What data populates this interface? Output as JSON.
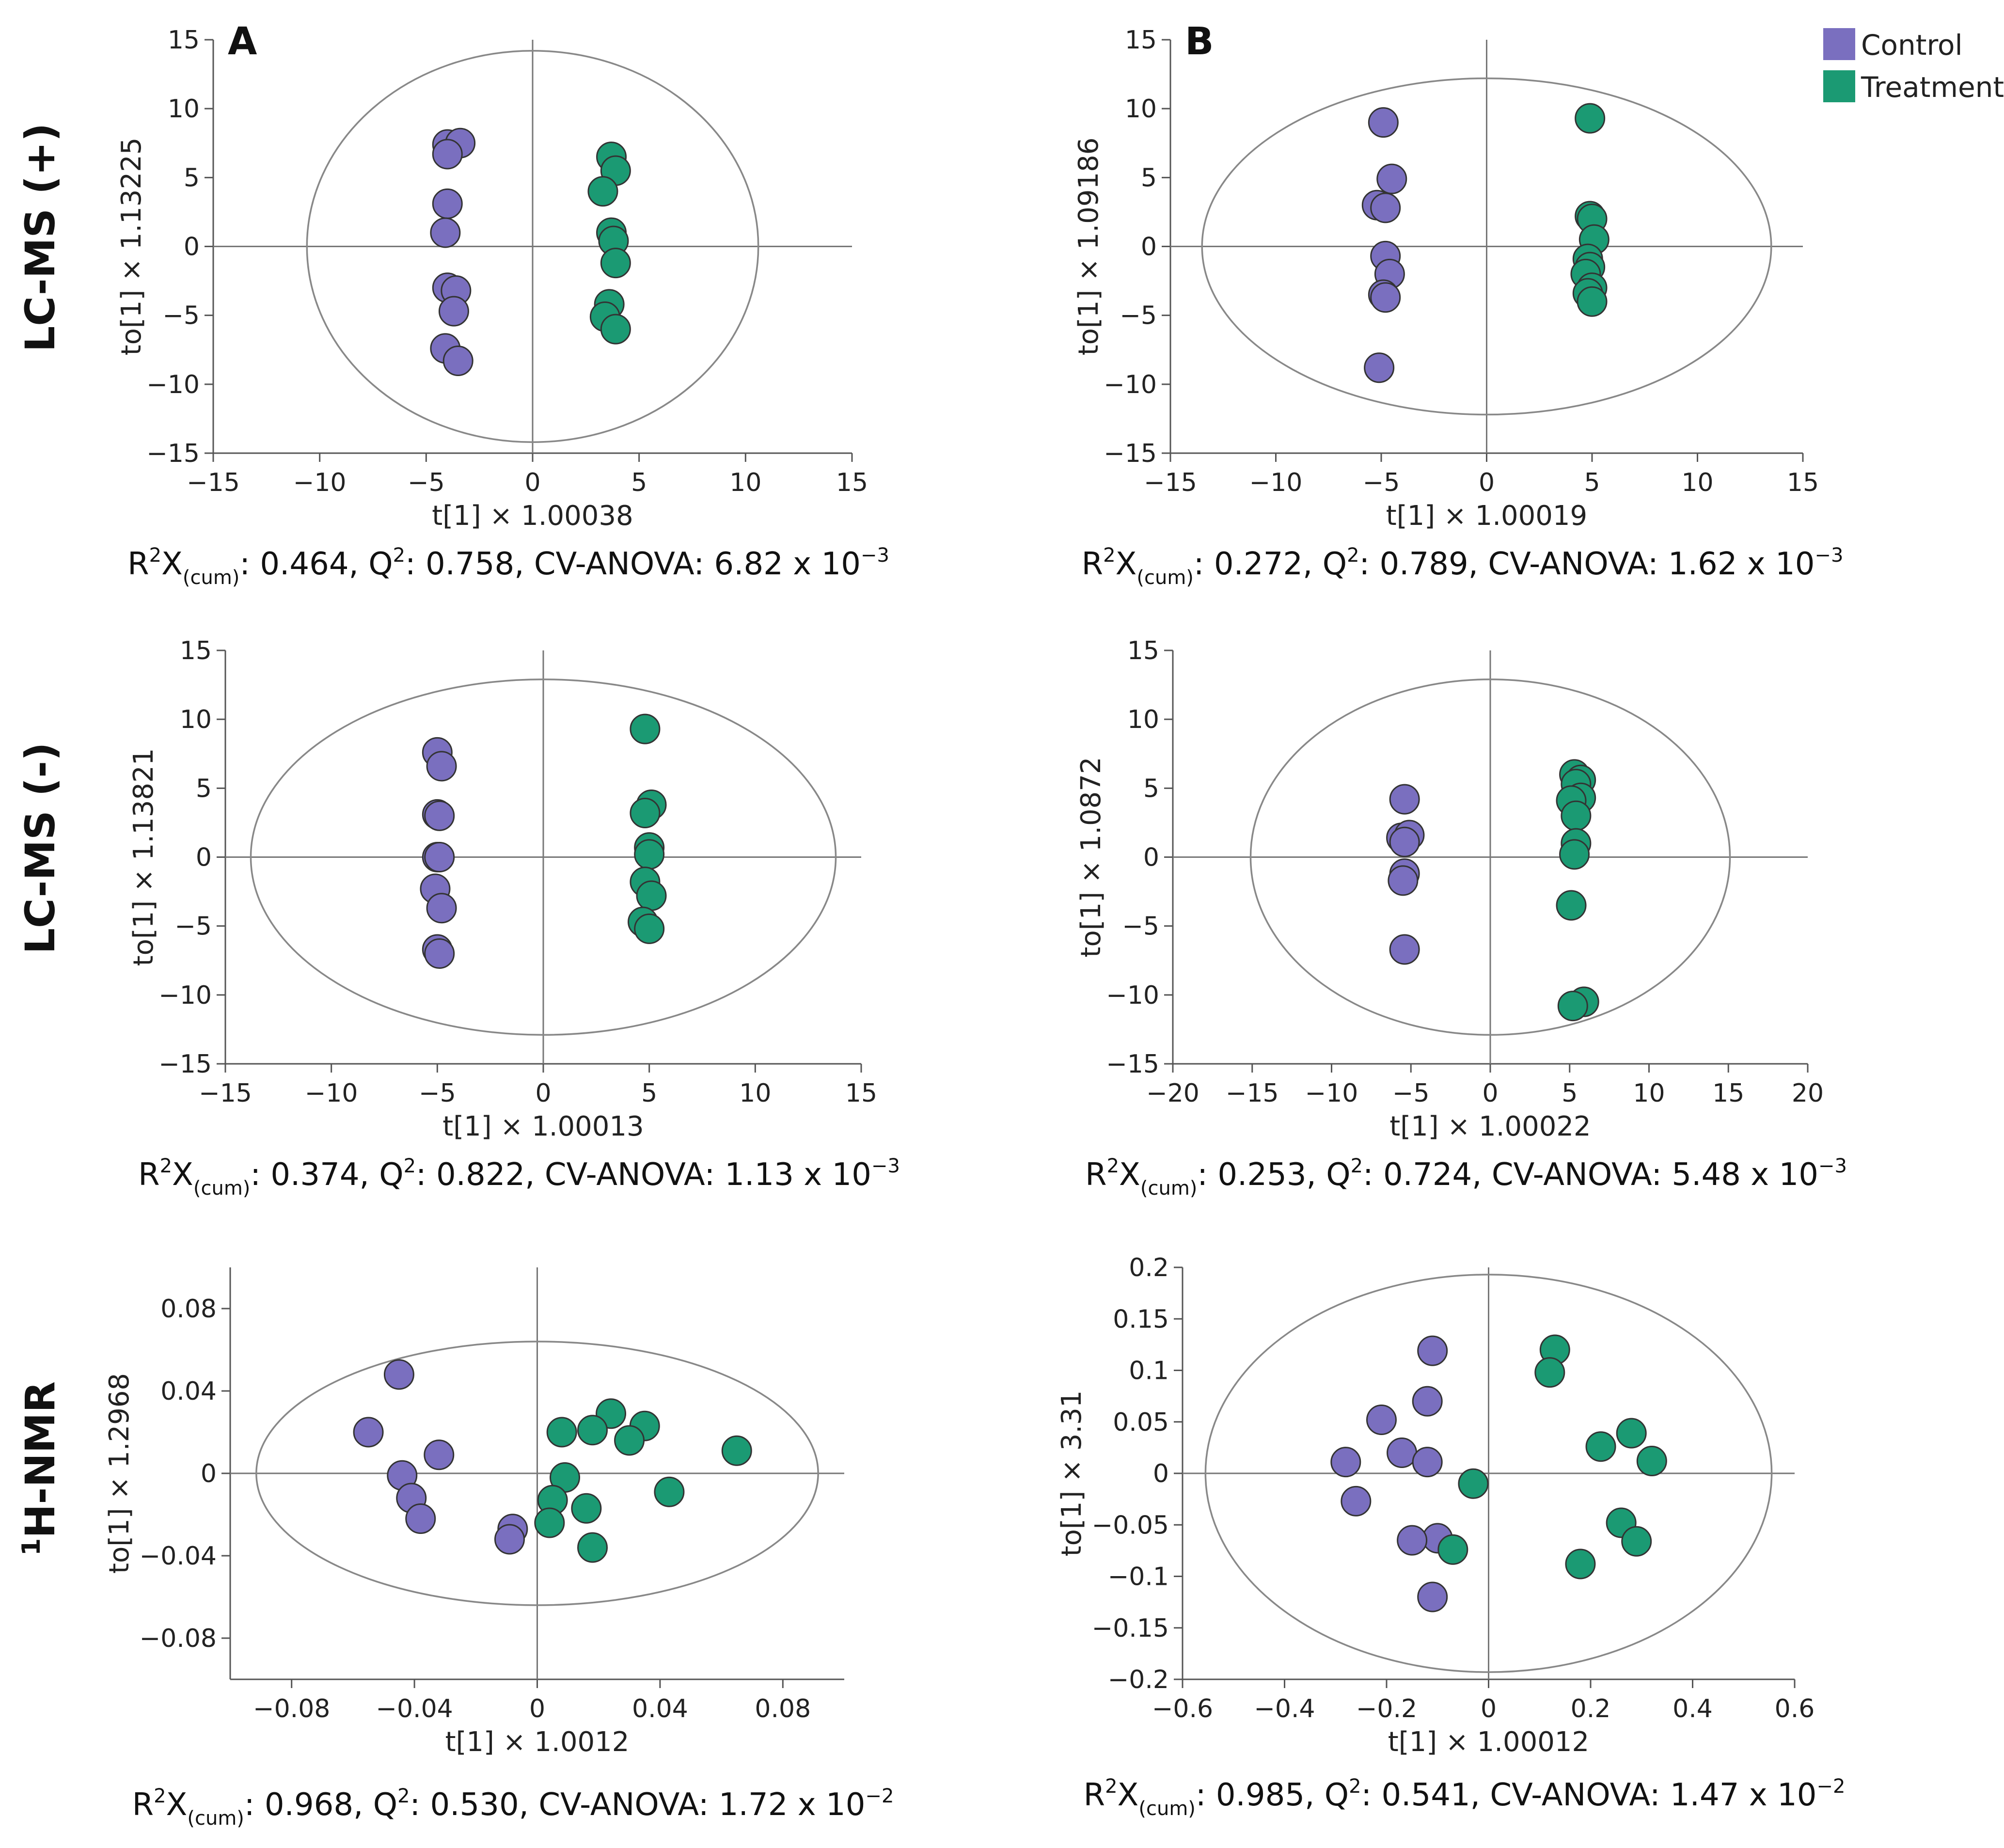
{
  "legend": {
    "items": [
      {
        "label": "Control",
        "color": "#7a6fbf"
      },
      {
        "label": "Treatment",
        "color": "#1b9a73"
      }
    ]
  },
  "row_labels": [
    "LC-MS (+)",
    "LC-MS (-)",
    "H-NMR"
  ],
  "row_label_nmr_sup": "1",
  "column_labels": [
    "A",
    "B"
  ],
  "chart_data": [
    {
      "type": "scatter",
      "row": 0,
      "col": 0,
      "panel_label": "A",
      "xlabel": "t[1] × 1.00038",
      "ylabel": "to[1] × 1.13225",
      "xlim": [
        -15,
        15
      ],
      "ylim": [
        -15,
        15
      ],
      "xticks": [
        -15,
        -10,
        -5,
        0,
        5,
        10,
        15
      ],
      "yticks": [
        -15,
        -10,
        -5,
        0,
        5,
        10,
        15
      ],
      "ellipse": {
        "rx": 10.6,
        "ry": 14.2
      },
      "stats": {
        "r2x": "0.464",
        "q2": "0.758",
        "cv_mant": "6.82",
        "cv_exp": "-3"
      },
      "series": [
        {
          "name": "Control",
          "points": [
            [
              -4,
              7.4
            ],
            [
              -3.4,
              7.5
            ],
            [
              -4,
              6.7
            ],
            [
              -4,
              3.1
            ],
            [
              -4.1,
              1
            ],
            [
              -4,
              -3
            ],
            [
              -3.6,
              -3.2
            ],
            [
              -3.7,
              -4.7
            ],
            [
              -4.1,
              -7.4
            ],
            [
              -3.5,
              -8.3
            ]
          ]
        },
        {
          "name": "Treatment",
          "points": [
            [
              3.7,
              6.5
            ],
            [
              3.9,
              5.5
            ],
            [
              3.3,
              4
            ],
            [
              3.7,
              1
            ],
            [
              3.8,
              0.4
            ],
            [
              3.9,
              -1.2
            ],
            [
              3.6,
              -4.2
            ],
            [
              3.4,
              -5.1
            ],
            [
              3.9,
              -6
            ]
          ]
        }
      ]
    },
    {
      "type": "scatter",
      "row": 0,
      "col": 1,
      "panel_label": "B",
      "xlabel": "t[1] × 1.00019",
      "ylabel": "to[1] × 1.09186",
      "xlim": [
        -15,
        15
      ],
      "ylim": [
        -15,
        15
      ],
      "xticks": [
        -15,
        -10,
        -5,
        0,
        5,
        10,
        15
      ],
      "yticks": [
        -15,
        -10,
        -5,
        0,
        5,
        10,
        15
      ],
      "ellipse": {
        "rx": 13.5,
        "ry": 12.2
      },
      "stats": {
        "r2x": "0.272",
        "q2": "0.789",
        "cv_mant": "1.62",
        "cv_exp": "-3"
      },
      "series": [
        {
          "name": "Control",
          "points": [
            [
              -4.9,
              9
            ],
            [
              -4.5,
              4.9
            ],
            [
              -5.2,
              3
            ],
            [
              -4.8,
              2.8
            ],
            [
              -4.8,
              -0.7
            ],
            [
              -4.6,
              -2
            ],
            [
              -4.9,
              -3.5
            ],
            [
              -4.8,
              -3.7
            ],
            [
              -5.1,
              -8.8
            ]
          ]
        },
        {
          "name": "Treatment",
          "points": [
            [
              4.9,
              9.3
            ],
            [
              4.9,
              2.2
            ],
            [
              5,
              2
            ],
            [
              5.1,
              0.5
            ],
            [
              4.8,
              -0.9
            ],
            [
              4.9,
              -1.5
            ],
            [
              4.7,
              -2
            ],
            [
              5,
              -3
            ],
            [
              4.8,
              -3.4
            ],
            [
              5,
              -4
            ]
          ]
        }
      ]
    },
    {
      "type": "scatter",
      "row": 1,
      "col": 0,
      "xlabel": "t[1] × 1.00013",
      "ylabel": "to[1] × 1.13821",
      "xlim": [
        -15,
        15
      ],
      "ylim": [
        -15,
        15
      ],
      "xticks": [
        -15,
        -10,
        -5,
        0,
        5,
        10,
        15
      ],
      "yticks": [
        -15,
        -10,
        -5,
        0,
        5,
        10,
        15
      ],
      "ellipse": {
        "rx": 13.8,
        "ry": 12.9
      },
      "stats": {
        "r2x": "0.374",
        "q2": "0.822",
        "cv_mant": "1.13",
        "cv_exp": "-3"
      },
      "series": [
        {
          "name": "Control",
          "points": [
            [
              -5,
              7.6
            ],
            [
              -4.8,
              6.6
            ],
            [
              -5,
              3.1
            ],
            [
              -4.9,
              3
            ],
            [
              -5,
              0
            ],
            [
              -4.9,
              0
            ],
            [
              -5.1,
              -2.3
            ],
            [
              -4.8,
              -3.7
            ],
            [
              -5,
              -6.7
            ],
            [
              -4.9,
              -7
            ]
          ]
        },
        {
          "name": "Treatment",
          "points": [
            [
              4.8,
              9.3
            ],
            [
              5.1,
              3.8
            ],
            [
              4.8,
              3.2
            ],
            [
              5,
              0.7
            ],
            [
              5,
              0.2
            ],
            [
              4.8,
              -1.8
            ],
            [
              5.1,
              -2.8
            ],
            [
              4.7,
              -4.7
            ],
            [
              5,
              -5.2
            ]
          ]
        }
      ]
    },
    {
      "type": "scatter",
      "row": 1,
      "col": 1,
      "xlabel": "t[1] × 1.00022",
      "ylabel": "to[1] × 1.0872",
      "xlim": [
        -20,
        20
      ],
      "ylim": [
        -15,
        15
      ],
      "xticks": [
        -20,
        -15,
        -10,
        -5,
        0,
        5,
        10,
        15,
        20
      ],
      "yticks": [
        -15,
        -10,
        -5,
        0,
        5,
        10,
        15
      ],
      "ellipse": {
        "rx": 15.1,
        "ry": 12.9
      },
      "stats": {
        "r2x": "0.253",
        "q2": "0.724",
        "cv_mant": "5.48",
        "cv_exp": "-3"
      },
      "series": [
        {
          "name": "Control",
          "points": [
            [
              -5.4,
              4.2
            ],
            [
              -5.6,
              1.4
            ],
            [
              -5.1,
              1.6
            ],
            [
              -5.4,
              1.1
            ],
            [
              -5.4,
              -1.2
            ],
            [
              -5.5,
              -1.7
            ],
            [
              -5.4,
              -6.7
            ]
          ]
        },
        {
          "name": "Treatment",
          "points": [
            [
              5.3,
              6
            ],
            [
              5.7,
              5.6
            ],
            [
              5.4,
              5.3
            ],
            [
              5.7,
              4.3
            ],
            [
              5.1,
              4.1
            ],
            [
              5.4,
              3
            ],
            [
              5.4,
              1
            ],
            [
              5.3,
              0.2
            ],
            [
              5.1,
              -3.5
            ],
            [
              5.9,
              -10.5
            ],
            [
              5.2,
              -10.8
            ]
          ]
        }
      ]
    },
    {
      "type": "scatter",
      "row": 2,
      "col": 0,
      "xlabel": "t[1] × 1.0012",
      "ylabel": "to[1] × 1.2968",
      "xlim": [
        -0.1,
        0.1
      ],
      "ylim": [
        -0.1,
        0.1
      ],
      "xticks": [
        -0.08,
        -0.04,
        0,
        0.04,
        0.08
      ],
      "xtick_labels": [
        "-0.08",
        "-0.04",
        "0",
        "0.04",
        "0.08"
      ],
      "yticks": [
        -0.08,
        -0.04,
        0,
        0.04,
        0.08
      ],
      "ytick_labels": [
        "-0.08",
        "-0.04",
        "0",
        "0.04",
        "0.08"
      ],
      "ellipse": {
        "rx": 0.0915,
        "ry": 0.064
      },
      "stats": {
        "r2x": "0.968",
        "q2": "0.530",
        "cv_mant": "1.72",
        "cv_exp": "-2"
      },
      "series": [
        {
          "name": "Control",
          "points": [
            [
              -0.045,
              0.048
            ],
            [
              -0.055,
              0.02
            ],
            [
              -0.032,
              0.009
            ],
            [
              -0.044,
              -0.001
            ],
            [
              -0.041,
              -0.012
            ],
            [
              -0.038,
              -0.022
            ],
            [
              -0.008,
              -0.027
            ],
            [
              -0.009,
              -0.032
            ]
          ]
        },
        {
          "name": "Treatment",
          "points": [
            [
              0.008,
              0.02
            ],
            [
              0.024,
              0.029
            ],
            [
              0.018,
              0.021
            ],
            [
              0.035,
              0.023
            ],
            [
              0.03,
              0.016
            ],
            [
              0.065,
              0.011
            ],
            [
              0.009,
              -0.002
            ],
            [
              0.043,
              -0.009
            ],
            [
              0.005,
              -0.013
            ],
            [
              0.016,
              -0.017
            ],
            [
              0.004,
              -0.024
            ],
            [
              0.018,
              -0.036
            ]
          ]
        }
      ]
    },
    {
      "type": "scatter",
      "row": 2,
      "col": 1,
      "xlabel": "t[1] × 1.00012",
      "ylabel": "to[1] × 3.31",
      "xlim": [
        -0.6,
        0.6
      ],
      "ylim": [
        -0.2,
        0.2
      ],
      "xticks": [
        -0.6,
        -0.4,
        -0.2,
        0,
        0.2,
        0.4,
        0.6
      ],
      "xtick_labels": [
        "-0.6",
        "-0.4",
        "-0.2",
        "0",
        "0.2",
        "0.4",
        "0.6"
      ],
      "yticks": [
        -0.2,
        -0.15,
        -0.1,
        -0.05,
        0,
        0.05,
        0.1,
        0.15,
        0.2
      ],
      "ytick_labels": [
        "-0.2",
        "-0.15",
        "-0.1",
        "-0.05",
        "0",
        "0.05",
        "0.1",
        "0.15",
        "0.2"
      ],
      "ellipse": {
        "rx": 0.555,
        "ry": 0.193
      },
      "stats": {
        "r2x": "0.985",
        "q2": "0.541",
        "cv_mant": "1.47",
        "cv_exp": "-2"
      },
      "series": [
        {
          "name": "Control",
          "points": [
            [
              -0.11,
              0.119
            ],
            [
              -0.12,
              0.07
            ],
            [
              -0.21,
              0.052
            ],
            [
              -0.17,
              0.02
            ],
            [
              -0.28,
              0.011
            ],
            [
              -0.12,
              0.011
            ],
            [
              -0.26,
              -0.027
            ],
            [
              -0.1,
              -0.063
            ],
            [
              -0.15,
              -0.065
            ],
            [
              -0.11,
              -0.12
            ]
          ]
        },
        {
          "name": "Treatment",
          "points": [
            [
              0.13,
              0.12
            ],
            [
              0.12,
              0.098
            ],
            [
              0.28,
              0.039
            ],
            [
              0.22,
              0.026
            ],
            [
              0.32,
              0.012
            ],
            [
              -0.03,
              -0.01
            ],
            [
              0.26,
              -0.048
            ],
            [
              0.29,
              -0.066
            ],
            [
              -0.07,
              -0.074
            ],
            [
              0.18,
              -0.088
            ]
          ]
        }
      ]
    }
  ]
}
